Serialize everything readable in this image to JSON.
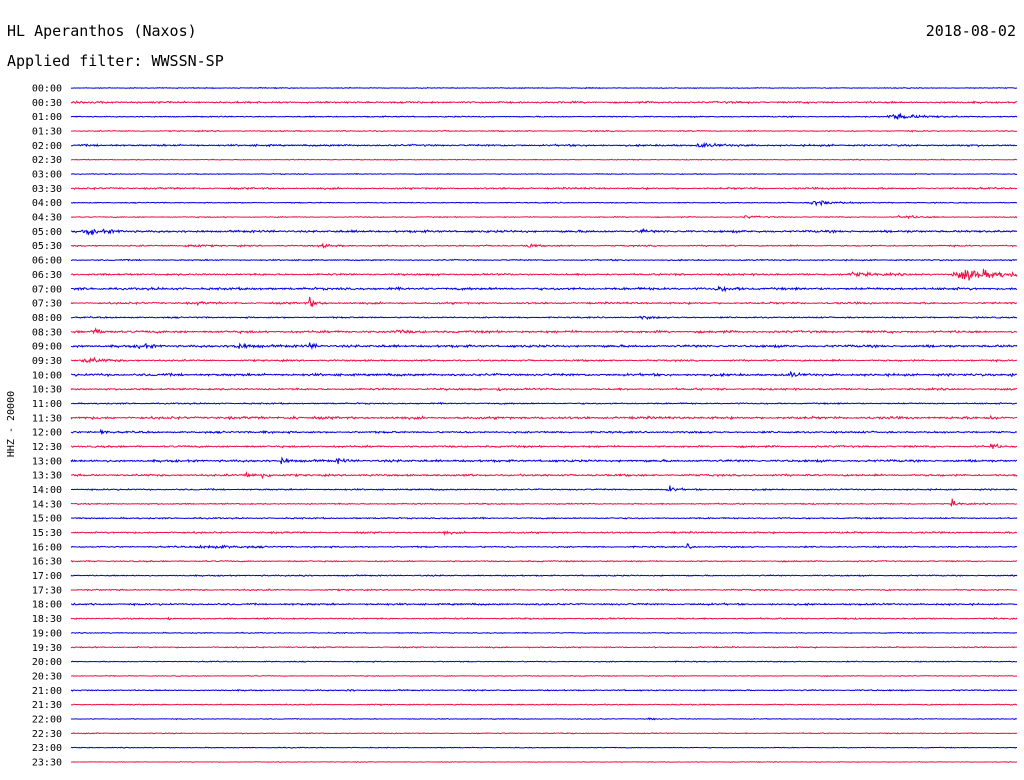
{
  "header": {
    "station": "HL Aperanthos (Naxos)",
    "filter": "Applied filter: WWSSN-SP",
    "date": "2018-08-02"
  },
  "chart_data": {
    "type": "line",
    "ylabel": "HHZ - 20000",
    "trace_colors": [
      "#0000dd",
      "#ee1144"
    ],
    "rows": [
      "00:00",
      "00:30",
      "01:00",
      "01:30",
      "02:00",
      "02:30",
      "03:00",
      "03:30",
      "04:00",
      "04:30",
      "05:00",
      "05:30",
      "06:00",
      "06:30",
      "07:00",
      "07:30",
      "08:00",
      "08:30",
      "09:00",
      "09:30",
      "10:00",
      "10:30",
      "11:00",
      "11:30",
      "12:00",
      "12:30",
      "13:00",
      "13:30",
      "14:00",
      "14:30",
      "15:00",
      "15:30",
      "16:00",
      "16:30",
      "17:00",
      "17:30",
      "18:00",
      "18:30",
      "19:00",
      "19:30",
      "20:00",
      "20:30",
      "21:00",
      "21:30",
      "22:00",
      "22:30",
      "23:00",
      "23:30"
    ],
    "noise_level": [
      0.6,
      1.3,
      0.8,
      0.8,
      1.3,
      0.6,
      0.6,
      1.2,
      0.7,
      0.7,
      1.6,
      1.0,
      0.9,
      1.3,
      1.7,
      1.3,
      1.0,
      1.6,
      1.7,
      1.2,
      1.7,
      1.3,
      1.0,
      1.7,
      1.3,
      1.3,
      1.6,
      1.4,
      1.0,
      0.9,
      1.0,
      1.2,
      1.0,
      0.9,
      0.9,
      1.0,
      1.3,
      1.0,
      0.7,
      0.9,
      0.7,
      0.6,
      0.9,
      0.8,
      0.6,
      0.7,
      0.6,
      0.5
    ],
    "events": [
      {
        "row": 2,
        "t": 0.86,
        "a": 5,
        "w": 0.03
      },
      {
        "row": 4,
        "t": 0.66,
        "a": 4,
        "w": 0.015
      },
      {
        "row": 8,
        "t": 0.78,
        "a": 5,
        "w": 0.02
      },
      {
        "row": 9,
        "t": 0.71,
        "a": 3,
        "w": 0.01
      },
      {
        "row": 9,
        "t": 0.87,
        "a": 3,
        "w": 0.02
      },
      {
        "row": 10,
        "t": 0.01,
        "a": 4,
        "w": 0.02
      },
      {
        "row": 10,
        "t": 0.6,
        "a": 4,
        "w": 0.006
      },
      {
        "row": 11,
        "t": 0.12,
        "a": 5,
        "w": 0.01
      },
      {
        "row": 11,
        "t": 0.26,
        "a": 3,
        "w": 0.01
      },
      {
        "row": 11,
        "t": 0.48,
        "a": 5,
        "w": 0.006
      },
      {
        "row": 13,
        "t": 0.82,
        "a": 4,
        "w": 0.02
      },
      {
        "row": 13,
        "t": 0.93,
        "a": 11,
        "w": 0.04
      },
      {
        "row": 14,
        "t": 0.68,
        "a": 4,
        "w": 0.01
      },
      {
        "row": 15,
        "t": 0.13,
        "a": 3,
        "w": 0.006
      },
      {
        "row": 15,
        "t": 0.25,
        "a": 10,
        "w": 0.006
      },
      {
        "row": 16,
        "t": 0.6,
        "a": 3,
        "w": 0.01
      },
      {
        "row": 17,
        "t": 0.02,
        "a": 5,
        "w": 0.01
      },
      {
        "row": 17,
        "t": 0.34,
        "a": 3,
        "w": 0.01
      },
      {
        "row": 18,
        "t": 0.07,
        "a": 5,
        "w": 0.008
      },
      {
        "row": 18,
        "t": 0.17,
        "a": 6,
        "w": 0.012
      },
      {
        "row": 18,
        "t": 0.25,
        "a": 6,
        "w": 0.006
      },
      {
        "row": 19,
        "t": 0.01,
        "a": 6,
        "w": 0.015
      },
      {
        "row": 20,
        "t": 0.76,
        "a": 7,
        "w": 0.004
      },
      {
        "row": 20,
        "t": 0.99,
        "a": 4,
        "w": 0.004
      },
      {
        "row": 21,
        "t": 0.45,
        "a": 4,
        "w": 0.004
      },
      {
        "row": 23,
        "t": 0.23,
        "a": 6,
        "w": 0.004
      },
      {
        "row": 23,
        "t": 0.97,
        "a": 5,
        "w": 0.006
      },
      {
        "row": 24,
        "t": 0.03,
        "a": 6,
        "w": 0.004
      },
      {
        "row": 24,
        "t": 0.2,
        "a": 4,
        "w": 0.004
      },
      {
        "row": 25,
        "t": 0.97,
        "a": 8,
        "w": 0.005
      },
      {
        "row": 26,
        "t": 0.22,
        "a": 7,
        "w": 0.006
      },
      {
        "row": 26,
        "t": 0.28,
        "a": 5,
        "w": 0.006
      },
      {
        "row": 27,
        "t": 0.18,
        "a": 6,
        "w": 0.008
      },
      {
        "row": 27,
        "t": 0.2,
        "a": 6,
        "w": 0.006
      },
      {
        "row": 28,
        "t": 0.63,
        "a": 7,
        "w": 0.006
      },
      {
        "row": 29,
        "t": 0.93,
        "a": 8,
        "w": 0.004
      },
      {
        "row": 31,
        "t": 0.39,
        "a": 4,
        "w": 0.006
      },
      {
        "row": 32,
        "t": 0.13,
        "a": 3,
        "w": 0.03
      },
      {
        "row": 32,
        "t": 0.65,
        "a": 6,
        "w": 0.004
      },
      {
        "row": 34,
        "t": 0.24,
        "a": 3,
        "w": 0.006
      },
      {
        "row": 37,
        "t": 0.1,
        "a": 4,
        "w": 0.004
      },
      {
        "row": 42,
        "t": 0.29,
        "a": 3,
        "w": 0.006
      },
      {
        "row": 44,
        "t": 0.61,
        "a": 3,
        "w": 0.004
      }
    ]
  }
}
